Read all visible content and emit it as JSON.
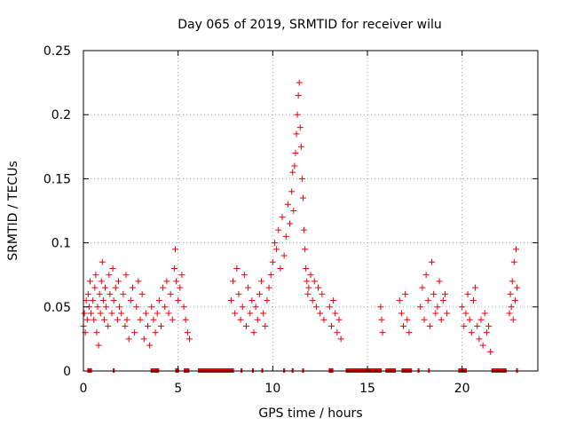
{
  "chart_data": {
    "type": "scatter",
    "title": "Day 065 of 2019, SRMTID for receiver wilu",
    "xlabel": "GPS time / hours",
    "ylabel": "SRMTID / TECUs",
    "xlim": [
      0,
      24
    ],
    "ylim": [
      0,
      0.25
    ],
    "xticks": [
      0,
      5,
      10,
      15,
      20
    ],
    "xtick_labels": [
      "0",
      "5",
      "10",
      "15",
      "20"
    ],
    "yticks": [
      0,
      0.05,
      0.1,
      0.15,
      0.2,
      0.25
    ],
    "ytick_labels": [
      "0",
      "0.05",
      "0.1",
      "0.15",
      "0.2",
      "0.25"
    ],
    "grid": true,
    "marker": "+",
    "color": "#e8000b",
    "series": [
      {
        "name": "SRMTID",
        "x": [
          0.0,
          0.05,
          0.1,
          0.15,
          0.2,
          0.25,
          0.3,
          0.35,
          0.4,
          0.5,
          0.55,
          0.6,
          0.65,
          0.7,
          0.75,
          0.8,
          0.85,
          0.9,
          0.95,
          1.0,
          1.05,
          1.1,
          1.15,
          1.2,
          1.3,
          1.35,
          1.4,
          1.5,
          1.55,
          1.6,
          1.7,
          1.8,
          1.85,
          1.9,
          2.0,
          2.1,
          2.2,
          2.25,
          2.3,
          2.4,
          2.5,
          2.6,
          2.7,
          2.8,
          2.9,
          3.0,
          3.1,
          3.2,
          3.3,
          3.4,
          3.5,
          3.6,
          3.7,
          3.8,
          3.9,
          4.0,
          4.1,
          4.2,
          4.3,
          4.4,
          4.5,
          4.6,
          4.7,
          4.8,
          4.85,
          4.9,
          5.0,
          5.1,
          5.2,
          5.3,
          5.4,
          5.5,
          5.6,
          7.8,
          7.9,
          8.0,
          8.1,
          8.2,
          8.3,
          8.4,
          8.5,
          8.6,
          8.7,
          8.8,
          8.9,
          9.0,
          9.1,
          9.2,
          9.3,
          9.4,
          9.5,
          9.6,
          9.7,
          9.8,
          9.9,
          10.0,
          10.1,
          10.2,
          10.3,
          10.4,
          10.5,
          10.6,
          10.7,
          10.8,
          10.9,
          11.0,
          11.05,
          11.1,
          11.15,
          11.2,
          11.25,
          11.3,
          11.35,
          11.4,
          11.45,
          11.5,
          11.55,
          11.6,
          11.65,
          11.7,
          11.75,
          11.8,
          11.85,
          11.9,
          12.0,
          12.1,
          12.2,
          12.3,
          12.4,
          12.5,
          12.6,
          12.7,
          13.0,
          13.1,
          13.2,
          13.3,
          13.4,
          13.5,
          13.6,
          15.7,
          15.75,
          15.8,
          16.7,
          16.8,
          16.9,
          17.0,
          17.1,
          17.2,
          17.8,
          17.9,
          18.0,
          18.1,
          18.2,
          18.3,
          18.4,
          18.5,
          18.6,
          18.7,
          18.8,
          18.9,
          19.0,
          19.1,
          19.2,
          20.0,
          20.1,
          20.2,
          20.3,
          20.4,
          20.5,
          20.6,
          20.7,
          20.8,
          20.9,
          21.0,
          21.1,
          21.2,
          21.3,
          21.4,
          21.5,
          22.5,
          22.55,
          22.6,
          22.65,
          22.7,
          22.75,
          22.8,
          22.85,
          22.9
        ],
        "y": [
          0.035,
          0.045,
          0.03,
          0.055,
          0.04,
          0.06,
          0.05,
          0.07,
          0.045,
          0.055,
          0.04,
          0.065,
          0.075,
          0.03,
          0.05,
          0.02,
          0.06,
          0.045,
          0.07,
          0.085,
          0.055,
          0.04,
          0.065,
          0.05,
          0.035,
          0.075,
          0.06,
          0.045,
          0.08,
          0.055,
          0.065,
          0.04,
          0.07,
          0.05,
          0.045,
          0.06,
          0.035,
          0.075,
          0.04,
          0.025,
          0.055,
          0.065,
          0.03,
          0.05,
          0.07,
          0.04,
          0.06,
          0.025,
          0.045,
          0.035,
          0.02,
          0.05,
          0.04,
          0.03,
          0.045,
          0.055,
          0.035,
          0.065,
          0.05,
          0.07,
          0.045,
          0.06,
          0.04,
          0.08,
          0.095,
          0.07,
          0.055,
          0.065,
          0.075,
          0.05,
          0.04,
          0.03,
          0.025,
          0.055,
          0.07,
          0.045,
          0.08,
          0.06,
          0.04,
          0.05,
          0.075,
          0.035,
          0.065,
          0.045,
          0.055,
          0.03,
          0.05,
          0.04,
          0.06,
          0.07,
          0.045,
          0.035,
          0.055,
          0.065,
          0.075,
          0.085,
          0.1,
          0.095,
          0.11,
          0.08,
          0.12,
          0.09,
          0.105,
          0.13,
          0.115,
          0.14,
          0.155,
          0.125,
          0.16,
          0.17,
          0.185,
          0.2,
          0.215,
          0.225,
          0.19,
          0.175,
          0.15,
          0.135,
          0.11,
          0.095,
          0.08,
          0.07,
          0.06,
          0.065,
          0.075,
          0.055,
          0.07,
          0.05,
          0.065,
          0.045,
          0.06,
          0.04,
          0.05,
          0.035,
          0.055,
          0.045,
          0.03,
          0.04,
          0.025,
          0.05,
          0.04,
          0.03,
          0.055,
          0.045,
          0.035,
          0.06,
          0.04,
          0.03,
          0.05,
          0.065,
          0.04,
          0.075,
          0.055,
          0.035,
          0.085,
          0.06,
          0.045,
          0.05,
          0.07,
          0.04,
          0.055,
          0.06,
          0.045,
          0.05,
          0.035,
          0.045,
          0.06,
          0.04,
          0.03,
          0.055,
          0.065,
          0.035,
          0.025,
          0.04,
          0.02,
          0.045,
          0.03,
          0.035,
          0.015,
          0.045,
          0.06,
          0.05,
          0.07,
          0.04,
          0.085,
          0.055,
          0.095,
          0.065
        ]
      }
    ],
    "flag_segments": [
      [
        0.2,
        0.45
      ],
      [
        1.55,
        1.65
      ],
      [
        3.55,
        4.0
      ],
      [
        4.85,
        5.05
      ],
      [
        5.3,
        5.6
      ],
      [
        6.05,
        7.95
      ],
      [
        8.3,
        8.4
      ],
      [
        8.9,
        9.0
      ],
      [
        9.4,
        9.45
      ],
      [
        10.55,
        10.65
      ],
      [
        11.0,
        11.1
      ],
      [
        11.55,
        11.65
      ],
      [
        12.95,
        13.2
      ],
      [
        13.85,
        15.75
      ],
      [
        15.95,
        16.5
      ],
      [
        16.8,
        17.35
      ],
      [
        17.65,
        17.75
      ],
      [
        18.2,
        18.25
      ],
      [
        19.8,
        20.25
      ],
      [
        21.55,
        22.35
      ],
      [
        22.85,
        22.95
      ]
    ]
  }
}
